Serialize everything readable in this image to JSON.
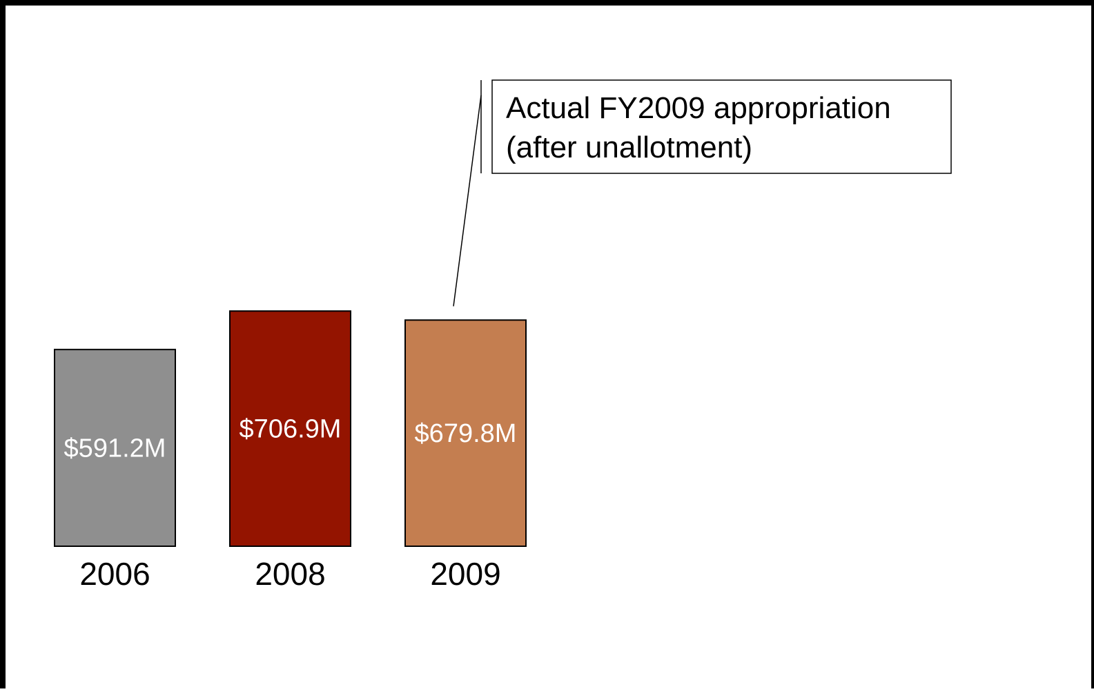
{
  "chart_data": {
    "type": "bar",
    "categories": [
      "2006",
      "2008",
      "2009"
    ],
    "values": [
      591.2,
      706.9,
      679.8
    ],
    "value_labels": [
      "$591.2M",
      "$706.9M",
      "$679.8M"
    ],
    "colors": [
      "#8f8f8f",
      "#941400",
      "#c47e50"
    ],
    "title": "",
    "xlabel": "",
    "ylabel": "",
    "grid": false,
    "annotation": {
      "target_category": "2009",
      "lines": [
        "Actual FY2009 appropriation",
        "(after unallotment)"
      ]
    }
  }
}
